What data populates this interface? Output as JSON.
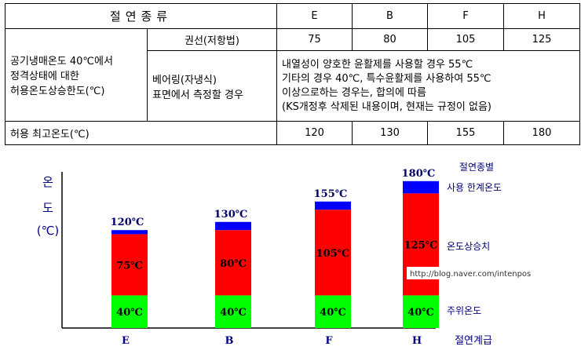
{
  "table": {
    "header_label": "절연종류",
    "classes": [
      "E",
      "B",
      "F",
      "H"
    ],
    "row_group_label_lines": [
      "공기냉매온도 40℃에서",
      "정격상태에 대한",
      "허용온도상승한도(℃)"
    ],
    "row1_label": "권선(저항법)",
    "row1_values": [
      "75",
      "80",
      "105",
      "125"
    ],
    "row2_label_lines": [
      "베어링(자냉식)",
      "표면에서 측정할 경우"
    ],
    "row2_note_lines": [
      "내열성이 양호한 윤활제를 사용할 경우 55℃",
      "기타의 경우 40℃, 특수윤활제를 사용하여 55℃",
      "이상으로하는 경우는, 합의에 따름",
      "(KS개정후 삭제된 내용이며, 현재는 규정이 없음)"
    ],
    "row3_label": "허용 최고온도(℃)",
    "row3_values": [
      "120",
      "130",
      "155",
      "180"
    ]
  },
  "chart_data": {
    "type": "bar",
    "stacked": true,
    "categories": [
      "E",
      "B",
      "F",
      "H"
    ],
    "series": [
      {
        "name": "주위온도",
        "values": [
          40,
          40,
          40,
          40
        ],
        "labels": [
          "40℃",
          "40℃",
          "40℃",
          "40℃"
        ],
        "color": "#00ff00"
      },
      {
        "name": "온도상승치",
        "values": [
          75,
          80,
          105,
          125
        ],
        "labels": [
          "75℃",
          "80℃",
          "105℃",
          "125℃"
        ],
        "color": "#ff0000"
      },
      {
        "name": "사용 한계온도",
        "values": [
          5,
          10,
          10,
          15
        ],
        "color": "#0000ff"
      }
    ],
    "totals": [
      120,
      130,
      155,
      180
    ],
    "total_labels": [
      "120℃",
      "130℃",
      "155℃",
      "180℃"
    ],
    "ylabel_lines": [
      "온",
      "도",
      "(℃)"
    ],
    "xlabel": "절연계급",
    "legend_title": "절연종별",
    "watermark": "http://blog.naver.com/intenpos",
    "colors": {
      "total_label": "#000066",
      "bar_label": "#000000",
      "legend_text": "#000080"
    }
  }
}
